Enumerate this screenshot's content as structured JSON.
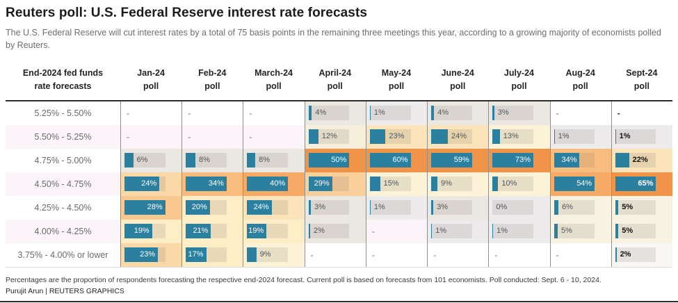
{
  "title": "Reuters poll: U.S. Federal Reserve interest rate forecasts",
  "subtitle": "The U.S. Federal Reserve will cut interest rates by a total of 75 basis points in the remaining three meetings this year, according to a growing majority of economists polled by Reuters.",
  "table": {
    "corner_header": "End-2024 fed funds\nrate forecasts",
    "column_headers": [
      "Jan-24\npoll",
      "Feb-24\npoll",
      "March-24\npoll",
      "April-24\npoll",
      "May-24\npoll",
      "June-24\npoll",
      "July-24\npoll",
      "Aug-24\npoll",
      "Sept-24\npoll"
    ],
    "current_column_index": 8,
    "no_data_marker": "-",
    "heat": [
      [
        null,
        null,
        null,
        "g1",
        "g0",
        "g1",
        "g1",
        null,
        null
      ],
      [
        null,
        null,
        null,
        "c0",
        "p1",
        "p1",
        "c1",
        "g0",
        "g0"
      ],
      [
        "g1",
        "g1",
        "g1",
        "o5",
        "o5",
        "o5",
        "o5",
        "o3",
        "p1"
      ],
      [
        "p2",
        "o3",
        "o4",
        "p3",
        "c1",
        "c1",
        "c1",
        "o4",
        "o5"
      ],
      [
        "o2",
        "c2",
        "p1",
        "g1",
        "g0",
        "g1",
        "g0",
        "c3",
        "c3"
      ],
      [
        "c2",
        "c2",
        "c2",
        "g1",
        null,
        "g0",
        "g0",
        "c3",
        "c3"
      ],
      [
        "p2",
        "c2",
        "c1",
        null,
        null,
        null,
        null,
        null,
        "w"
      ]
    ]
  },
  "chart_data": {
    "type": "heatmap",
    "title": "Reuters poll: U.S. Federal Reserve interest rate forecasts",
    "unit": "%",
    "x_categories": [
      "Jan-24",
      "Feb-24",
      "March-24",
      "April-24",
      "May-24",
      "June-24",
      "July-24",
      "Aug-24",
      "Sept-24"
    ],
    "y_categories": [
      "5.25% - 5.50%",
      "5.50% - 5.25%",
      "4.75% - 5.00%",
      "4.50% - 4.75%",
      "4.25% - 4.50%",
      "4.00% - 4.25%",
      "3.75% - 4.00% or lower"
    ],
    "values": [
      [
        null,
        null,
        null,
        4,
        1,
        4,
        3,
        null,
        null
      ],
      [
        null,
        null,
        null,
        12,
        23,
        24,
        13,
        1,
        1
      ],
      [
        6,
        8,
        8,
        50,
        60,
        59,
        73,
        34,
        22
      ],
      [
        24,
        34,
        40,
        29,
        15,
        9,
        10,
        54,
        65
      ],
      [
        28,
        20,
        24,
        3,
        1,
        3,
        0,
        6,
        5
      ],
      [
        19,
        21,
        19,
        2,
        null,
        1,
        1,
        5,
        5
      ],
      [
        23,
        17,
        9,
        null,
        null,
        null,
        null,
        null,
        2
      ]
    ],
    "column_scale_max": [
      28,
      34,
      40,
      50,
      60,
      59,
      73,
      54,
      65
    ]
  },
  "colors": {
    "bar": "#2b7f9f",
    "row_alt": "#fbf5fa",
    "row_base": "#ffffff",
    "heat_palette": {
      "g0": "#eeebec",
      "g1": "#ebe8e2",
      "c0": "#f5eeda",
      "c1": "#fbf2d7",
      "c2": "#fdeec7",
      "c3": "#f8f2e3",
      "p1": "#fbe3ba",
      "p2": "#fbd8a8",
      "p3": "#f9cf9c",
      "o2": "#f9c890",
      "o3": "#f8bd7e",
      "o4": "#f5aa66",
      "o5": "#f0944a",
      "w": "#f9f7f3"
    }
  },
  "footnote": "Percentages are the proportion of respondents forecasting the respective end-2024 forecast. Current poll is based on forecasts from 101 economists. Poll conducted: Sept. 6 - 10, 2024.",
  "byline": "Purujit Arun | REUTERS GRAPHICS"
}
